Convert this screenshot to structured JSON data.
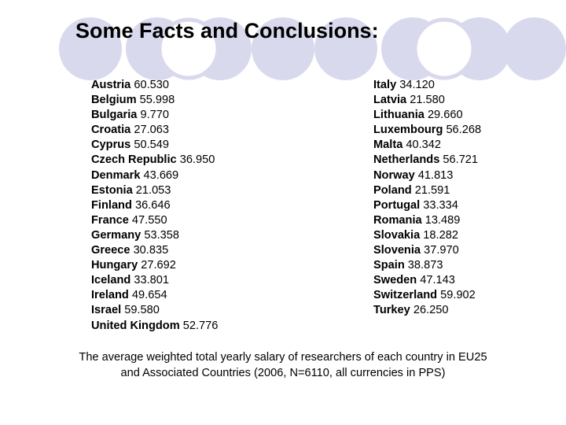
{
  "slide": {
    "title": "Some Facts and Conclusions:",
    "decoration_color": "#d9d9ee"
  },
  "salaries": {
    "left": [
      {
        "country": "Austria",
        "value": "60.530"
      },
      {
        "country": "Belgium",
        "value": "55.998"
      },
      {
        "country": "Bulgaria",
        "value": "9.770"
      },
      {
        "country": "Croatia",
        "value": "27.063"
      },
      {
        "country": "Cyprus",
        "value": "50.549"
      },
      {
        "country": "Czech Republic",
        "value": "36.950"
      },
      {
        "country": "Denmark",
        "value": "43.669"
      },
      {
        "country": "Estonia",
        "value": "21.053"
      },
      {
        "country": "Finland",
        "value": "36.646"
      },
      {
        "country": "France",
        "value": "47.550"
      },
      {
        "country": "Germany",
        "value": "53.358"
      },
      {
        "country": "Greece",
        "value": "30.835"
      },
      {
        "country": "Hungary",
        "value": "27.692"
      },
      {
        "country": "Iceland",
        "value": "33.801"
      },
      {
        "country": "Ireland",
        "value": "49.654"
      },
      {
        "country": "Israel",
        "value": "59.580"
      },
      {
        "country": "United Kingdom",
        "value": "52.776"
      }
    ],
    "right": [
      {
        "country": "Italy",
        "value": "34.120"
      },
      {
        "country": "Latvia",
        "value": "21.580"
      },
      {
        "country": "Lithuania",
        "value": "29.660"
      },
      {
        "country": "Luxembourg",
        "value": "56.268"
      },
      {
        "country": "Malta",
        "value": "40.342"
      },
      {
        "country": "Netherlands",
        "value": "56.721"
      },
      {
        "country": "Norway",
        "value": "41.813"
      },
      {
        "country": "Poland",
        "value": "21.591"
      },
      {
        "country": "Portugal",
        "value": "33.334"
      },
      {
        "country": "Romania",
        "value": "13.489"
      },
      {
        "country": "Slovakia",
        "value": "18.282"
      },
      {
        "country": "Slovenia",
        "value": "37.970"
      },
      {
        "country": "Spain",
        "value": "38.873"
      },
      {
        "country": "Sweden",
        "value": "47.143"
      },
      {
        "country": "Switzerland",
        "value": "59.902"
      },
      {
        "country": "Turkey",
        "value": "26.250"
      }
    ]
  },
  "caption": {
    "line1": "The average weighted total yearly salary of researchers of each country in EU25",
    "line2": "and Associated Countries (2006, N=6110, all currencies in PPS)"
  }
}
